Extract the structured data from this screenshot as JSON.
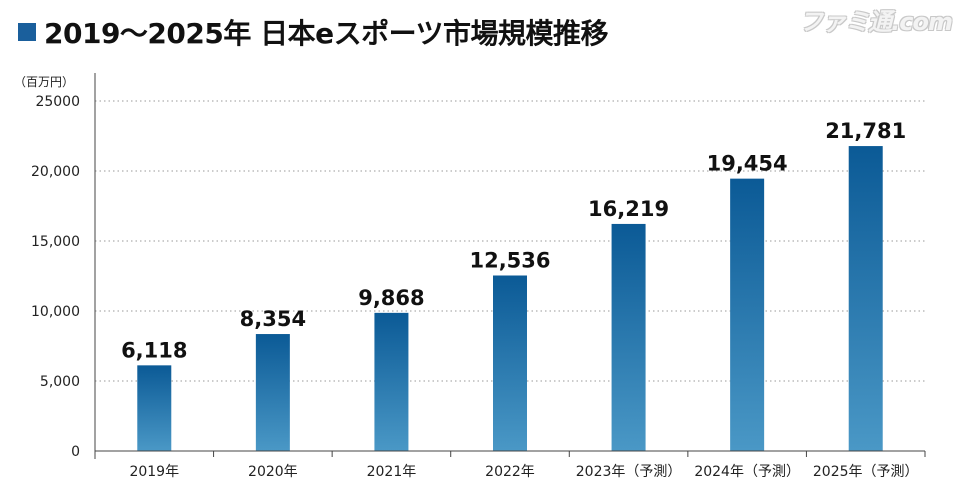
{
  "title": "2019〜2025年 日本eスポーツ市場規模推移",
  "watermark": "ファミ通.com",
  "colors": {
    "title_square": "#1a5f9c",
    "bar_top": "#0b5a96",
    "bar_bottom": "#4a98c6",
    "grid": "#9a9a9a",
    "axis": "#444444"
  },
  "chart_data": {
    "type": "bar",
    "unit_label": "（百万円）",
    "categories": [
      "2019年",
      "2020年",
      "2021年",
      "2022年",
      "2023年（予測）",
      "2024年（予測）",
      "2025年（予測）"
    ],
    "values": [
      6118,
      8354,
      9868,
      12536,
      16219,
      19454,
      21781
    ],
    "value_labels": [
      "6,118",
      "8,354",
      "9,868",
      "12,536",
      "16,219",
      "19,454",
      "21,781"
    ],
    "y_ticks": [
      0,
      5000,
      10000,
      15000,
      20000,
      25000
    ],
    "y_tick_labels": [
      "0",
      "5,000",
      "10,000",
      "15,000",
      "20,000",
      "25000"
    ],
    "ylim": [
      0,
      25000
    ],
    "grid": true,
    "grid_style": "dotted"
  }
}
